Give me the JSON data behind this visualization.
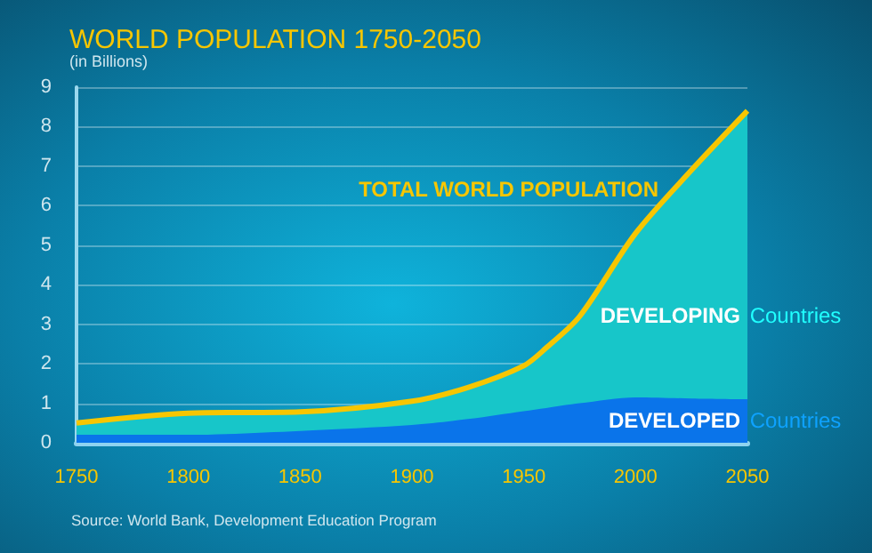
{
  "chart_data": {
    "type": "area",
    "title": "WORLD POPULATION 1750-2050",
    "subtitle": "(in Billions)",
    "x": [
      1750,
      1800,
      1850,
      1900,
      1925,
      1950,
      1960,
      1975,
      2000,
      2025,
      2050
    ],
    "stacked": true,
    "series": [
      {
        "name": "DEVELOPED Countries",
        "color": "#0a74ea",
        "values": [
          0.2,
          0.2,
          0.3,
          0.45,
          0.6,
          0.8,
          0.88,
          1.0,
          1.15,
          1.12,
          1.1
        ]
      },
      {
        "name": "DEVELOPING Countries",
        "color": "#17c6c9",
        "values": [
          0.3,
          0.55,
          0.48,
          0.6,
          0.8,
          1.15,
          1.52,
          2.2,
          4.15,
          5.78,
          7.3
        ]
      },
      {
        "name": "TOTAL WORLD POPULATION",
        "type": "line",
        "color": "#f7c600",
        "values": [
          0.5,
          0.75,
          0.78,
          1.05,
          1.4,
          1.95,
          2.4,
          3.2,
          5.3,
          6.9,
          8.4
        ]
      }
    ],
    "xlim": [
      1750,
      2050
    ],
    "xticks": [
      1750,
      1800,
      1850,
      1900,
      1950,
      2000,
      2050
    ],
    "ylim": [
      0,
      9
    ],
    "yticks": [
      0,
      1,
      2,
      3,
      4,
      5,
      6,
      7,
      8,
      9
    ],
    "grid": "y",
    "legend": false,
    "marker": "none",
    "annotations": [
      "Source: World Bank, Development Education Program"
    ]
  }
}
